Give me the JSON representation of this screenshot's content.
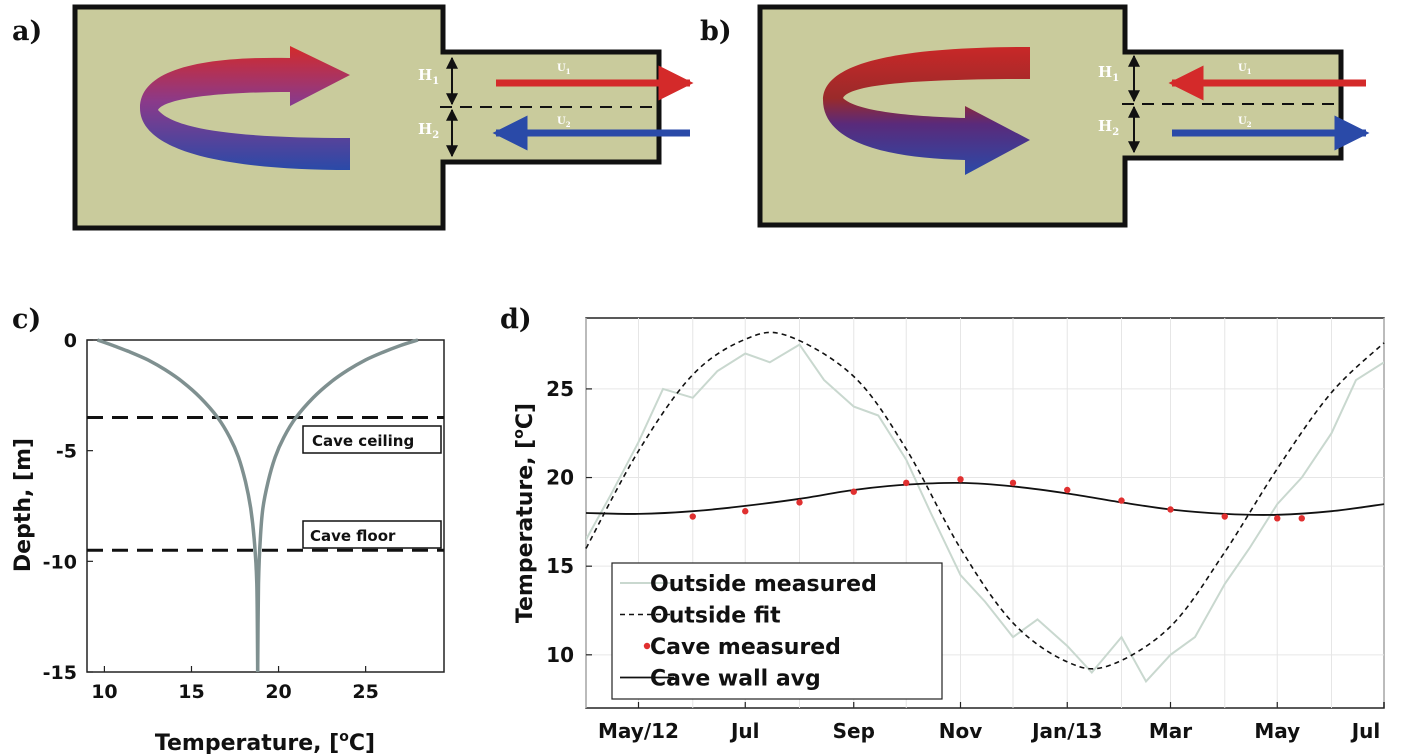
{
  "panels": {
    "a": {
      "label": "a)",
      "h1": "H",
      "h1_sub": "1",
      "h2": "H",
      "h2_sub": "2",
      "u1": "U",
      "u1_sub": "1",
      "u2": "U",
      "u2_sub": "2"
    },
    "b": {
      "label": "b)",
      "h1": "H",
      "h1_sub": "1",
      "h2": "H",
      "h2_sub": "2",
      "u1": "U",
      "u1_sub": "1",
      "u2": "U",
      "u2_sub": "2"
    },
    "c": {
      "label": "c)",
      "xlabel_pre": "Temperature, [",
      "xlabel_sup": "o",
      "xlabel_post": "C]",
      "ylabel": "Depth, [m]",
      "annotations": [
        "Cave ceiling",
        "Cave floor"
      ]
    },
    "d": {
      "label": "d)",
      "ylabel_pre": "Temperature, [",
      "ylabel_sup": "o",
      "ylabel_post": "C]"
    }
  },
  "colors": {
    "box_fill": "#c9cb9c",
    "warm": "#d42a2a",
    "cold": "#2a4aa8",
    "outside_measured": "#c9d8cf",
    "cave_measured": "#e03030",
    "depth_curve": "#7f9090"
  },
  "chart_data": [
    {
      "type": "line",
      "panel": "c",
      "title": "",
      "xlabel": "Temperature, [oC]",
      "ylabel": "Depth, [m]",
      "xlim": [
        9,
        29.5
      ],
      "ylim": [
        -15,
        0
      ],
      "xticks": [
        10,
        15,
        20,
        25
      ],
      "yticks": [
        0,
        -5,
        -10,
        -15
      ],
      "grid": false,
      "series": [
        {
          "x": [
            9.6,
            10.5,
            11.5,
            12.5,
            13.5,
            14.5,
            15.5,
            16.5,
            17.2,
            17.7,
            18.1,
            18.4,
            18.6,
            18.75,
            18.8
          ],
          "y": [
            0,
            -0.25,
            -0.55,
            -0.9,
            -1.35,
            -1.9,
            -2.6,
            -3.5,
            -4.4,
            -5.3,
            -6.4,
            -7.6,
            -9.0,
            -11.0,
            -15
          ]
        },
        {
          "x": [
            28.0,
            27.0,
            26.0,
            25.0,
            24.0,
            23.0,
            22.0,
            21.0,
            20.3,
            19.8,
            19.4,
            19.1,
            18.95,
            18.85,
            18.8
          ],
          "y": [
            0,
            -0.25,
            -0.55,
            -0.9,
            -1.35,
            -1.9,
            -2.6,
            -3.5,
            -4.4,
            -5.3,
            -6.4,
            -7.6,
            -9.0,
            -11.0,
            -15
          ]
        }
      ],
      "hlines": [
        {
          "y": -3.5,
          "label": "Cave ceiling"
        },
        {
          "y": -9.5,
          "label": "Cave floor"
        }
      ]
    },
    {
      "type": "line",
      "panel": "d",
      "title": "",
      "xlabel": "",
      "ylabel": "Temperature, [oC]",
      "x_tick_labels": [
        "May/12",
        "Jul",
        "Sep",
        "Nov",
        "Jan/13",
        "Mar",
        "May",
        "Jul"
      ],
      "xlim": [
        "2012-04-01",
        "2013-07-01"
      ],
      "ylim": [
        7,
        29
      ],
      "yticks": [
        10,
        15,
        20,
        25
      ],
      "grid": true,
      "legend_position": "bottom-left",
      "series": [
        {
          "name": "Outside measured",
          "x": [
            "2012-04-01",
            "2012-04-15",
            "2012-05-01",
            "2012-05-15",
            "2012-06-01",
            "2012-06-15",
            "2012-07-01",
            "2012-07-15",
            "2012-08-01",
            "2012-08-15",
            "2012-09-01",
            "2012-09-15",
            "2012-10-01",
            "2012-10-15",
            "2012-11-01",
            "2012-11-15",
            "2012-12-01",
            "2012-12-15",
            "2013-01-01",
            "2013-01-15",
            "2013-02-01",
            "2013-02-15",
            "2013-03-01",
            "2013-03-15",
            "2013-04-01",
            "2013-04-15",
            "2013-05-01",
            "2013-05-15",
            "2013-06-01",
            "2013-06-15",
            "2013-07-01"
          ],
          "y": [
            16.5,
            19,
            22,
            25,
            24.5,
            26,
            27,
            26.5,
            27.5,
            25.5,
            24,
            23.5,
            21,
            18,
            14.5,
            13,
            11,
            12,
            10.5,
            9,
            11,
            8.5,
            10,
            11,
            14,
            16,
            18.5,
            20,
            22.5,
            25.5,
            26.5
          ]
        },
        {
          "name": "Outside fit",
          "x": [
            "2012-04-01",
            "2012-05-01",
            "2012-06-01",
            "2012-07-01",
            "2012-07-25",
            "2012-09-01",
            "2012-10-01",
            "2012-11-01",
            "2012-12-01",
            "2013-01-01",
            "2013-01-25",
            "2013-03-01",
            "2013-04-01",
            "2013-05-01",
            "2013-06-01",
            "2013-07-01"
          ],
          "y": [
            16.0,
            21.5,
            25.8,
            27.8,
            28.0,
            25.7,
            21.6,
            16.0,
            11.8,
            9.6,
            9.4,
            11.6,
            15.8,
            20.5,
            24.8,
            27.6
          ]
        },
        {
          "name": "Cave measured",
          "x": [
            "2012-06-01",
            "2012-07-01",
            "2012-08-01",
            "2012-09-01",
            "2012-10-01",
            "2012-11-01",
            "2012-12-01",
            "2013-01-01",
            "2013-02-01",
            "2013-03-01",
            "2013-04-01",
            "2013-05-01",
            "2013-05-15"
          ],
          "y": [
            17.8,
            18.1,
            18.6,
            19.2,
            19.7,
            19.9,
            19.7,
            19.3,
            18.7,
            18.2,
            17.8,
            17.7,
            17.7
          ]
        },
        {
          "name": "Cave wall avg",
          "x": [
            "2012-04-01",
            "2012-05-01",
            "2012-06-01",
            "2012-07-01",
            "2012-08-01",
            "2012-09-01",
            "2012-10-01",
            "2012-11-01",
            "2012-12-01",
            "2013-01-01",
            "2013-02-01",
            "2013-03-01",
            "2013-04-01",
            "2013-05-01",
            "2013-06-01",
            "2013-07-01"
          ],
          "y": [
            18.0,
            17.95,
            18.1,
            18.4,
            18.8,
            19.3,
            19.6,
            19.7,
            19.5,
            19.1,
            18.6,
            18.2,
            17.95,
            17.9,
            18.1,
            18.5
          ]
        }
      ]
    }
  ]
}
